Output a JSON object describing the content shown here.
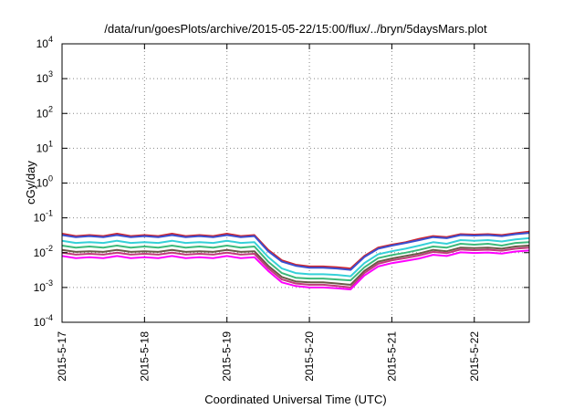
{
  "chart_data": {
    "type": "line",
    "title": "/data/run/goesPlots/archive/2015-05-22/15:00/flux/../bryn/5daysMars.plot",
    "xlabel": "Coordinated Universal Time (UTC)",
    "ylabel": "cGy/day",
    "yscale": "log",
    "ylim": [
      0.0001,
      10000
    ],
    "xlim": [
      "2015-05-17T00:00",
      "2015-05-22T16:00"
    ],
    "grid": true,
    "legend": "none",
    "y_ticks": [
      {
        "value": 0.0001,
        "base": "10",
        "exp": "-4"
      },
      {
        "value": 0.001,
        "base": "10",
        "exp": "-3"
      },
      {
        "value": 0.01,
        "base": "10",
        "exp": "-2"
      },
      {
        "value": 0.1,
        "base": "10",
        "exp": "-1"
      },
      {
        "value": 1,
        "base": "10",
        "exp": "0"
      },
      {
        "value": 10,
        "base": "10",
        "exp": "1"
      },
      {
        "value": 100,
        "base": "10",
        "exp": "2"
      },
      {
        "value": 1000,
        "base": "10",
        "exp": "3"
      },
      {
        "value": 10000,
        "base": "10",
        "exp": "4"
      }
    ],
    "x_ticks": [
      {
        "value": "2015-05-17T00:00",
        "label": "2015-5-17"
      },
      {
        "value": "2015-05-18T00:00",
        "label": "2015-5-18"
      },
      {
        "value": "2015-05-19T00:00",
        "label": "2015-5-19"
      },
      {
        "value": "2015-05-20T00:00",
        "label": "2015-5-20"
      },
      {
        "value": "2015-05-21T00:00",
        "label": "2015-5-21"
      },
      {
        "value": "2015-05-22T00:00",
        "label": "2015-5-22"
      }
    ],
    "colors": [
      "#d2232a",
      "#3a4fd1",
      "#35d0d8",
      "#3cb97a",
      "#6b5a47",
      "#c03b7a",
      "#ff00ff"
    ],
    "x": [
      "2015-05-17T00:00",
      "2015-05-17T04:00",
      "2015-05-17T08:00",
      "2015-05-17T12:00",
      "2015-05-17T16:00",
      "2015-05-17T20:00",
      "2015-05-18T00:00",
      "2015-05-18T04:00",
      "2015-05-18T08:00",
      "2015-05-18T12:00",
      "2015-05-18T16:00",
      "2015-05-18T20:00",
      "2015-05-19T00:00",
      "2015-05-19T04:00",
      "2015-05-19T08:00",
      "2015-05-19T12:00",
      "2015-05-19T16:00",
      "2015-05-19T20:00",
      "2015-05-20T00:00",
      "2015-05-20T04:00",
      "2015-05-20T08:00",
      "2015-05-20T12:00",
      "2015-05-20T16:00",
      "2015-05-20T20:00",
      "2015-05-21T00:00",
      "2015-05-21T04:00",
      "2015-05-21T08:00",
      "2015-05-21T12:00",
      "2015-05-21T16:00",
      "2015-05-21T20:00",
      "2015-05-22T00:00",
      "2015-05-22T04:00",
      "2015-05-22T08:00",
      "2015-05-22T12:00",
      "2015-05-22T16:00"
    ],
    "series": [
      {
        "values": [
          0.035,
          0.03,
          0.032,
          0.03,
          0.035,
          0.03,
          0.032,
          0.03,
          0.035,
          0.03,
          0.032,
          0.03,
          0.035,
          0.03,
          0.032,
          0.012,
          0.006,
          0.0045,
          0.004,
          0.004,
          0.0038,
          0.0035,
          0.008,
          0.014,
          0.017,
          0.02,
          0.025,
          0.03,
          0.028,
          0.034,
          0.033,
          0.034,
          0.032,
          0.036,
          0.04
        ]
      },
      {
        "values": [
          0.032,
          0.028,
          0.03,
          0.028,
          0.032,
          0.028,
          0.03,
          0.028,
          0.032,
          0.028,
          0.03,
          0.028,
          0.032,
          0.028,
          0.03,
          0.011,
          0.0055,
          0.0042,
          0.0037,
          0.0037,
          0.0035,
          0.0032,
          0.0075,
          0.013,
          0.016,
          0.019,
          0.023,
          0.028,
          0.026,
          0.032,
          0.031,
          0.032,
          0.03,
          0.034,
          0.037
        ]
      },
      {
        "values": [
          0.022,
          0.019,
          0.02,
          0.019,
          0.022,
          0.019,
          0.02,
          0.019,
          0.022,
          0.019,
          0.02,
          0.019,
          0.022,
          0.019,
          0.02,
          0.0075,
          0.0035,
          0.0026,
          0.0024,
          0.0024,
          0.0023,
          0.0021,
          0.005,
          0.009,
          0.011,
          0.013,
          0.016,
          0.02,
          0.018,
          0.023,
          0.022,
          0.023,
          0.021,
          0.024,
          0.026
        ]
      },
      {
        "values": [
          0.016,
          0.014,
          0.015,
          0.014,
          0.016,
          0.014,
          0.015,
          0.014,
          0.016,
          0.014,
          0.015,
          0.014,
          0.016,
          0.014,
          0.015,
          0.0055,
          0.0026,
          0.0019,
          0.0018,
          0.0018,
          0.0017,
          0.0016,
          0.0038,
          0.007,
          0.0085,
          0.01,
          0.012,
          0.015,
          0.014,
          0.018,
          0.017,
          0.018,
          0.016,
          0.019,
          0.02
        ]
      },
      {
        "values": [
          0.012,
          0.0105,
          0.011,
          0.0105,
          0.012,
          0.0105,
          0.011,
          0.0105,
          0.012,
          0.0105,
          0.011,
          0.0105,
          0.012,
          0.0105,
          0.011,
          0.0042,
          0.002,
          0.0015,
          0.0014,
          0.0014,
          0.0013,
          0.0012,
          0.003,
          0.0055,
          0.0068,
          0.008,
          0.0095,
          0.012,
          0.011,
          0.014,
          0.0135,
          0.014,
          0.013,
          0.015,
          0.016
        ]
      },
      {
        "values": [
          0.01,
          0.0088,
          0.0093,
          0.0088,
          0.01,
          0.0088,
          0.0093,
          0.0088,
          0.01,
          0.0088,
          0.0093,
          0.0088,
          0.01,
          0.0088,
          0.0093,
          0.0036,
          0.0017,
          0.0013,
          0.0012,
          0.0012,
          0.0011,
          0.001,
          0.0026,
          0.0048,
          0.006,
          0.007,
          0.0083,
          0.0105,
          0.0097,
          0.0123,
          0.0118,
          0.0122,
          0.0114,
          0.013,
          0.014
        ]
      },
      {
        "values": [
          0.008,
          0.007,
          0.0074,
          0.007,
          0.008,
          0.007,
          0.0074,
          0.007,
          0.008,
          0.007,
          0.0074,
          0.007,
          0.008,
          0.007,
          0.0074,
          0.003,
          0.0014,
          0.0011,
          0.001,
          0.001,
          0.00095,
          0.00088,
          0.0022,
          0.004,
          0.005,
          0.0058,
          0.0068,
          0.0087,
          0.008,
          0.0102,
          0.0098,
          0.0101,
          0.0094,
          0.0108,
          0.0115
        ]
      }
    ]
  }
}
